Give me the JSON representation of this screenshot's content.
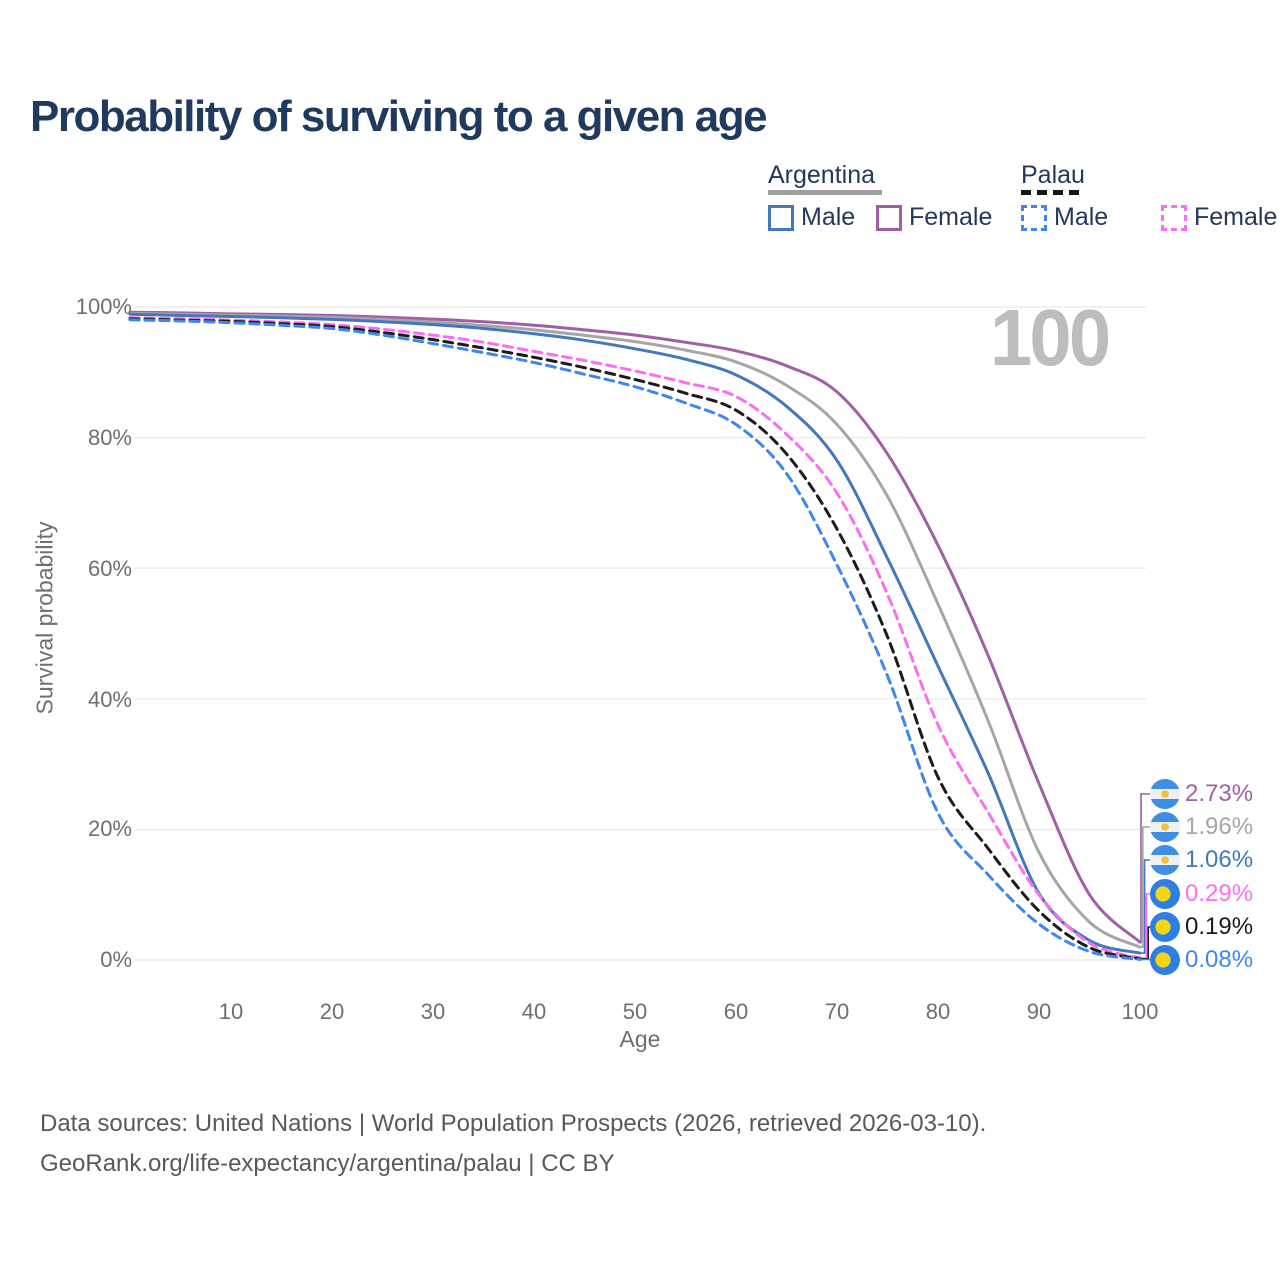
{
  "page": {
    "title": "Probability of surviving to a given age",
    "watermark": "100"
  },
  "legend": {
    "groups": [
      {
        "label": "Argentina",
        "line_style": "solid",
        "underline_color": "#9f9f9f",
        "items": [
          {
            "label": "Male",
            "color": "#4478bd",
            "dashed": false
          },
          {
            "label": "Female",
            "color": "#a25ea6",
            "dashed": false
          }
        ]
      },
      {
        "label": "Palau",
        "line_style": "dashed",
        "underline_color": "#161616",
        "items": [
          {
            "label": "Male",
            "color": "#3d87ee",
            "dashed": true
          },
          {
            "label": "Female",
            "color": "#fb6ef2",
            "dashed": true
          }
        ]
      }
    ]
  },
  "chart_data": {
    "type": "line",
    "title": "Probability of surviving to a given age",
    "xlabel": "Age",
    "ylabel": "Survival probability",
    "xlim": [
      0,
      100
    ],
    "ylim": [
      0,
      100
    ],
    "grid": "horizontal",
    "legend_position": "top-right",
    "x_ticks": [
      10,
      20,
      30,
      40,
      50,
      60,
      70,
      80,
      90,
      100
    ],
    "x_tick_labels": [
      "10",
      "20",
      "30",
      "40",
      "50",
      "60",
      "70",
      "80",
      "90",
      "100"
    ],
    "y_ticks": [
      100,
      80,
      60,
      40,
      20,
      0
    ],
    "y_tick_labels": [
      "100%",
      "80%",
      "60%",
      "40%",
      "20%",
      "0%"
    ],
    "ages": [
      0,
      5,
      10,
      15,
      20,
      25,
      30,
      35,
      40,
      45,
      50,
      55,
      60,
      65,
      70,
      75,
      80,
      85,
      90,
      95,
      100
    ],
    "series": [
      {
        "name": "Argentina Female",
        "country": "Argentina",
        "sex": "Female",
        "color": "#a25ea6",
        "dashed": false,
        "end_label": "2.73%",
        "flag": "argentina",
        "values": [
          99.2,
          99.1,
          98.95,
          98.85,
          98.7,
          98.45,
          98.15,
          97.75,
          97.2,
          96.5,
          95.7,
          94.6,
          93.3,
          91.0,
          87.0,
          77.5,
          63.5,
          46.5,
          27.0,
          10.0,
          2.73
        ]
      },
      {
        "name": "Argentina",
        "country": "Argentina",
        "sex": "All",
        "color": "#a6a6a6",
        "dashed": false,
        "end_label": "1.96%",
        "flag": "argentina",
        "values": [
          99.05,
          98.9,
          98.75,
          98.6,
          98.4,
          98.1,
          97.7,
          97.15,
          96.5,
          95.65,
          94.7,
          93.4,
          91.6,
          88.0,
          82.0,
          71.0,
          54.5,
          36.5,
          16.5,
          5.8,
          1.96
        ]
      },
      {
        "name": "Argentina Male",
        "country": "Argentina",
        "sex": "Male",
        "color": "#4478bd",
        "dashed": false,
        "end_label": "1.06%",
        "flag": "argentina",
        "values": [
          98.9,
          98.7,
          98.55,
          98.35,
          98.1,
          97.75,
          97.3,
          96.7,
          95.9,
          94.9,
          93.6,
          92.0,
          89.6,
          84.8,
          76.5,
          61.5,
          45.0,
          28.5,
          10.2,
          3.0,
          1.06
        ]
      },
      {
        "name": "Palau Female",
        "country": "Palau",
        "sex": "Female",
        "color": "#fb6ef2",
        "dashed": true,
        "end_label": "0.29%",
        "flag": "palau",
        "values": [
          98.35,
          98.2,
          98.0,
          97.7,
          97.3,
          96.6,
          95.7,
          94.6,
          93.2,
          91.8,
          90.2,
          88.4,
          86.3,
          80.5,
          71.5,
          56.0,
          36.0,
          22.5,
          10.0,
          2.6,
          0.29
        ]
      },
      {
        "name": "Palau",
        "country": "Palau",
        "sex": "All",
        "color": "#1c1c1c",
        "dashed": true,
        "end_label": "0.19%",
        "flag": "palau",
        "values": [
          98.2,
          98.0,
          97.8,
          97.45,
          97.0,
          96.1,
          95.0,
          93.7,
          92.3,
          90.7,
          88.9,
          86.8,
          84.2,
          77.5,
          66.0,
          49.5,
          28.0,
          17.0,
          7.5,
          1.9,
          0.19
        ]
      },
      {
        "name": "Palau Male",
        "country": "Palau",
        "sex": "Male",
        "color": "#3d87ee",
        "dashed": true,
        "end_label": "0.08%",
        "flag": "palau",
        "values": [
          98.05,
          97.85,
          97.6,
          97.2,
          96.7,
          95.7,
          94.4,
          93.0,
          91.5,
          89.7,
          87.8,
          85.3,
          82.0,
          74.5,
          60.5,
          43.5,
          22.5,
          13.0,
          5.5,
          1.3,
          0.08
        ]
      }
    ]
  },
  "footer": {
    "line1": "Data sources: United Nations | World Population Prospects (2026, retrieved 2026-03-10).",
    "line2": "GeoRank.org/life-expectancy/argentina/palau | CC BY"
  }
}
